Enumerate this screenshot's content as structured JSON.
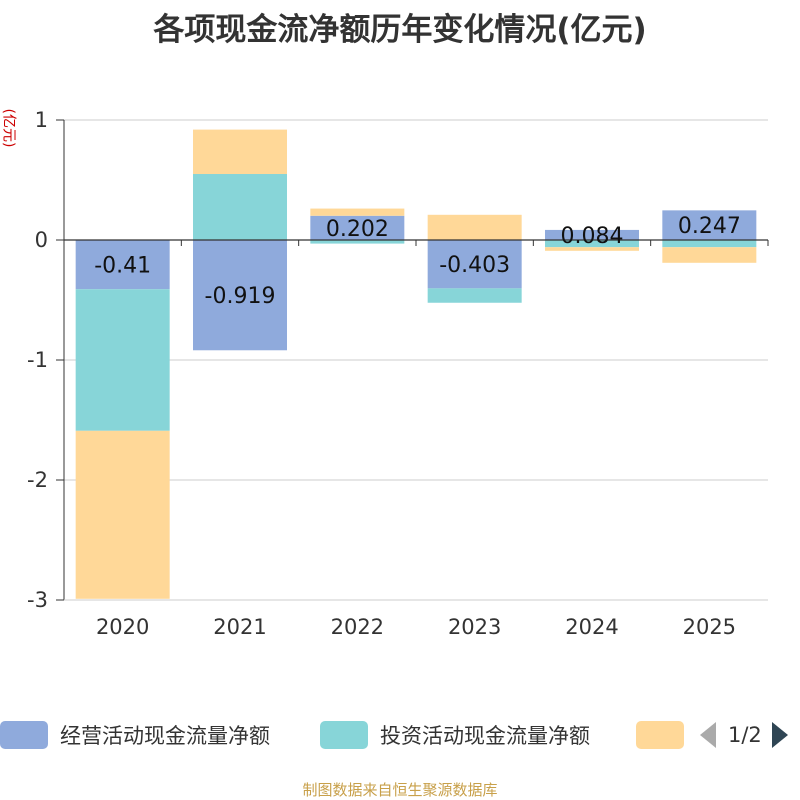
{
  "title": "各项现金流净额历年变化情况(亿元)",
  "unit_label": "(亿元)",
  "source": "制图数据来自恒生聚源数据库",
  "legend": {
    "items": [
      {
        "label": "经营活动现金流量净额",
        "color": "#8faadc"
      },
      {
        "label": "投资活动现金流量净额",
        "color": "#87d5d8"
      },
      {
        "label": "",
        "color": "#ffd898"
      }
    ],
    "page": "1/2"
  },
  "chart_data": {
    "type": "bar",
    "stacked": true,
    "title": "各项现金流净额历年变化情况(亿元)",
    "ylabel": "(亿元)",
    "ylim": [
      -3,
      1
    ],
    "yticks": [
      1,
      0,
      -1,
      -2,
      -3
    ],
    "categories": [
      "2020",
      "2021",
      "2022",
      "2023",
      "2024",
      "2025"
    ],
    "series": [
      {
        "name": "经营活动现金流量净额",
        "color": "#8faadc",
        "values": [
          -0.41,
          -0.919,
          0.202,
          -0.403,
          0.084,
          0.247
        ],
        "labels": [
          "-0.41",
          "-0.919",
          "0.202",
          "-0.403",
          "0.084",
          "0.247"
        ]
      },
      {
        "name": "投资活动现金流量净额",
        "color": "#87d5d8",
        "values": [
          -1.18,
          0.55,
          -0.03,
          -0.12,
          -0.06,
          -0.06
        ]
      },
      {
        "name": "",
        "color": "#ffd898",
        "values": [
          -1.4,
          0.37,
          0.06,
          0.21,
          -0.03,
          -0.13
        ]
      }
    ]
  }
}
